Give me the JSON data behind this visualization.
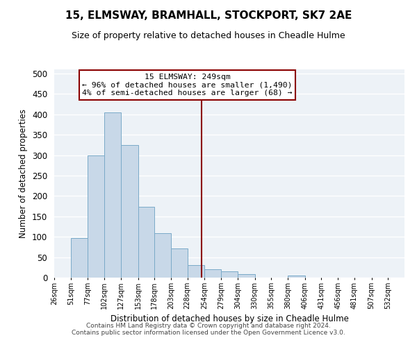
{
  "title": "15, ELMSWAY, BRAMHALL, STOCKPORT, SK7 2AE",
  "subtitle": "Size of property relative to detached houses in Cheadle Hulme",
  "xlabel": "Distribution of detached houses by size in Cheadle Hulme",
  "ylabel": "Number of detached properties",
  "bar_values": [
    0,
    97,
    300,
    405,
    325,
    173,
    109,
    72,
    30,
    20,
    16,
    9,
    0,
    0,
    5,
    0,
    0,
    0,
    0,
    0,
    0
  ],
  "bin_edges": [
    26,
    51,
    77,
    102,
    127,
    153,
    178,
    203,
    228,
    254,
    279,
    304,
    330,
    355,
    380,
    406,
    431,
    456,
    481,
    507,
    532,
    557
  ],
  "tick_labels": [
    "26sqm",
    "51sqm",
    "77sqm",
    "102sqm",
    "127sqm",
    "153sqm",
    "178sqm",
    "203sqm",
    "228sqm",
    "254sqm",
    "279sqm",
    "304sqm",
    "330sqm",
    "355sqm",
    "380sqm",
    "406sqm",
    "431sqm",
    "456sqm",
    "481sqm",
    "507sqm",
    "532sqm"
  ],
  "property_line_x": 249,
  "bar_color": "#c8d8e8",
  "bar_edge_color": "#7aaac8",
  "vline_color": "#8b0000",
  "annotation_box_edge_color": "#8b0000",
  "annotation_title": "15 ELMSWAY: 249sqm",
  "annotation_line1": "← 96% of detached houses are smaller (1,490)",
  "annotation_line2": "4% of semi-detached houses are larger (68) →",
  "ylim": [
    0,
    510
  ],
  "yticks": [
    0,
    50,
    100,
    150,
    200,
    250,
    300,
    350,
    400,
    450,
    500
  ],
  "footer1": "Contains HM Land Registry data © Crown copyright and database right 2024.",
  "footer2": "Contains public sector information licensed under the Open Government Licence v3.0.",
  "background_color": "#edf2f7",
  "grid_color": "#ffffff",
  "fig_bg_color": "#ffffff"
}
